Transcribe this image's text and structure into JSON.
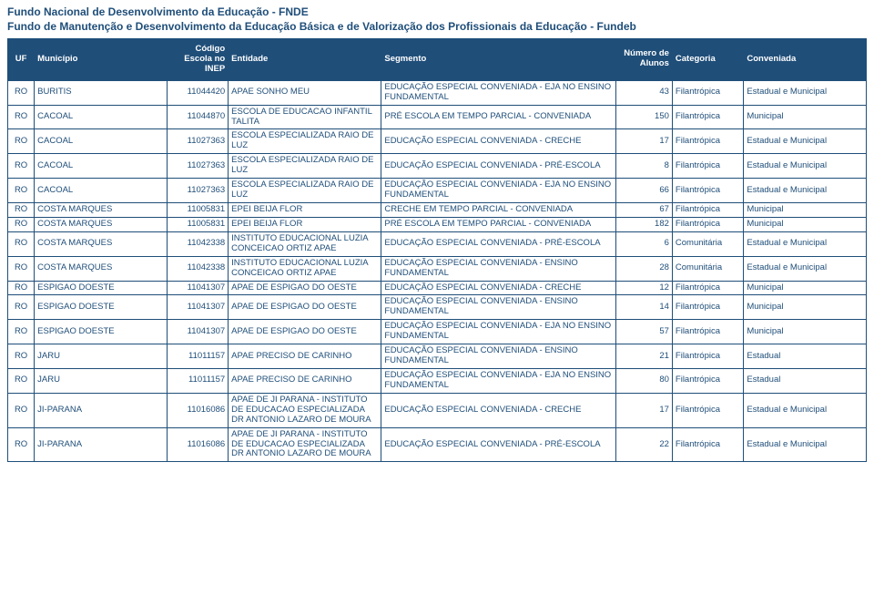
{
  "header": {
    "title": "Fundo Nacional de Desenvolvimento da Educação - FNDE",
    "subtitle": "Fundo de Manutenção e Desenvolvimento da Educação Básica e de Valorização dos Profissionais da Educação - Fundeb"
  },
  "table": {
    "columns": [
      "UF",
      "Município",
      "Código Escola no INEP",
      "Entidade",
      "Segmento",
      "Número de Alunos",
      "Categoria",
      "Conveniada"
    ],
    "rows": [
      [
        "RO",
        "BURITIS",
        "11044420",
        "APAE SONHO MEU",
        "EDUCAÇÃO ESPECIAL CONVENIADA - EJA NO ENSINO FUNDAMENTAL",
        "43",
        "Filantrópica",
        "Estadual e Municipal"
      ],
      [
        "RO",
        "CACOAL",
        "11044870",
        "ESCOLA DE EDUCACAO INFANTIL TALITA",
        "PRÉ ESCOLA EM TEMPO PARCIAL - CONVENIADA",
        "150",
        "Filantrópica",
        "Municipal"
      ],
      [
        "RO",
        "CACOAL",
        "11027363",
        "ESCOLA ESPECIALIZADA RAIO DE LUZ",
        "EDUCAÇÃO ESPECIAL CONVENIADA - CRECHE",
        "17",
        "Filantrópica",
        "Estadual e Municipal"
      ],
      [
        "RO",
        "CACOAL",
        "11027363",
        "ESCOLA ESPECIALIZADA RAIO DE LUZ",
        "EDUCAÇÃO ESPECIAL CONVENIADA - PRÉ-ESCOLA",
        "8",
        "Filantrópica",
        "Estadual e Municipal"
      ],
      [
        "RO",
        "CACOAL",
        "11027363",
        "ESCOLA ESPECIALIZADA RAIO DE LUZ",
        "EDUCAÇÃO ESPECIAL CONVENIADA - EJA NO ENSINO FUNDAMENTAL",
        "66",
        "Filantrópica",
        "Estadual e Municipal"
      ],
      [
        "RO",
        "COSTA MARQUES",
        "11005831",
        "EPEI BEIJA FLOR",
        "CRECHE EM TEMPO PARCIAL - CONVENIADA",
        "67",
        "Filantrópica",
        "Municipal"
      ],
      [
        "RO",
        "COSTA MARQUES",
        "11005831",
        "EPEI BEIJA FLOR",
        "PRÉ ESCOLA EM TEMPO PARCIAL - CONVENIADA",
        "182",
        "Filantrópica",
        "Municipal"
      ],
      [
        "RO",
        "COSTA MARQUES",
        "11042338",
        "INSTITUTO EDUCACIONAL LUZIA CONCEICAO ORTIZ APAE",
        "EDUCAÇÃO ESPECIAL CONVENIADA - PRÉ-ESCOLA",
        "6",
        "Comunitária",
        "Estadual e Municipal"
      ],
      [
        "RO",
        "COSTA MARQUES",
        "11042338",
        "INSTITUTO EDUCACIONAL LUZIA CONCEICAO ORTIZ APAE",
        "EDUCAÇÃO ESPECIAL CONVENIADA - ENSINO FUNDAMENTAL",
        "28",
        "Comunitária",
        "Estadual e Municipal"
      ],
      [
        "RO",
        "ESPIGAO DOESTE",
        "11041307",
        "APAE DE ESPIGAO DO OESTE",
        "EDUCAÇÃO ESPECIAL CONVENIADA - CRECHE",
        "12",
        "Filantrópica",
        "Municipal"
      ],
      [
        "RO",
        "ESPIGAO DOESTE",
        "11041307",
        "APAE DE ESPIGAO DO OESTE",
        "EDUCAÇÃO ESPECIAL CONVENIADA - ENSINO FUNDAMENTAL",
        "14",
        "Filantrópica",
        "Municipal"
      ],
      [
        "RO",
        "ESPIGAO DOESTE",
        "11041307",
        "APAE DE ESPIGAO DO OESTE",
        "EDUCAÇÃO ESPECIAL CONVENIADA - EJA NO ENSINO FUNDAMENTAL",
        "57",
        "Filantrópica",
        "Municipal"
      ],
      [
        "RO",
        "JARU",
        "11011157",
        "APAE PRECISO DE CARINHO",
        "EDUCAÇÃO ESPECIAL CONVENIADA - ENSINO FUNDAMENTAL",
        "21",
        "Filantrópica",
        "Estadual"
      ],
      [
        "RO",
        "JARU",
        "11011157",
        "APAE PRECISO DE CARINHO",
        "EDUCAÇÃO ESPECIAL CONVENIADA - EJA NO ENSINO FUNDAMENTAL",
        "80",
        "Filantrópica",
        "Estadual"
      ],
      [
        "RO",
        "JI-PARANA",
        "11016086",
        "APAE DE JI PARANA - INSTITUTO DE EDUCACAO ESPECIALIZADA DR ANTONIO LAZARO DE MOURA",
        "EDUCAÇÃO ESPECIAL CONVENIADA - CRECHE",
        "17",
        "Filantrópica",
        "Estadual e Municipal"
      ],
      [
        "RO",
        "JI-PARANA",
        "11016086",
        "APAE DE JI PARANA - INSTITUTO DE EDUCACAO ESPECIALIZADA DR ANTONIO LAZARO DE MOURA",
        "EDUCAÇÃO ESPECIAL CONVENIADA - PRÉ-ESCOLA",
        "22",
        "Filantrópica",
        "Estadual e Municipal"
      ]
    ]
  },
  "styling": {
    "header_bg": "#1f4e79",
    "header_fg": "#ffffff",
    "border_color": "#1f4e79",
    "text_color": "#1f4e79",
    "page_bg": "#ffffff",
    "font_family": "Arial",
    "title_fontsize_pt": 9,
    "body_fontsize_pt": 7,
    "column_classes": [
      "col-uf",
      "col-mun",
      "col-inep",
      "col-ent",
      "col-seg",
      "col-alunos",
      "col-cat",
      "col-conv"
    ]
  }
}
